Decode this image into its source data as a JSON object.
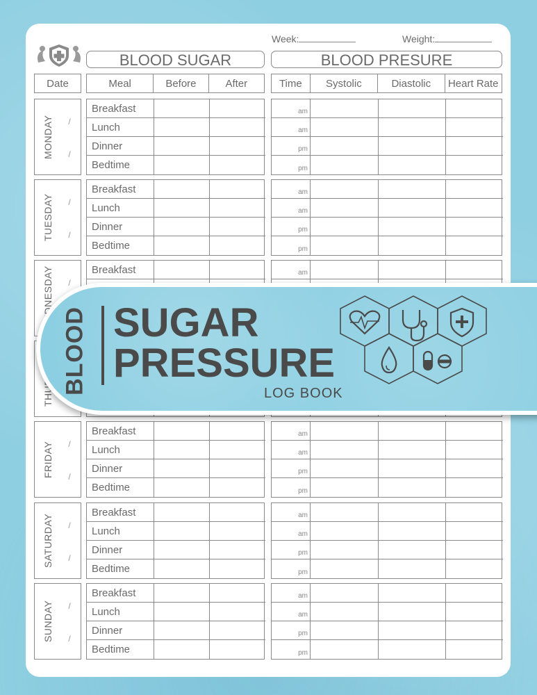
{
  "header": {
    "week_label": "Week:",
    "weight_label": "Weight:",
    "blood_sugar_title": "BLOOD SUGAR",
    "blood_pressure_title": "BLOOD PRESURE"
  },
  "columns": {
    "date": "Date",
    "meal": "Meal",
    "before": "Before",
    "after": "After",
    "time": "Time",
    "systolic": "Systolic",
    "diastolic": "Diastolic",
    "heart_rate": "Heart Rate"
  },
  "days": [
    "MONDAY",
    "TUESDAY",
    "WEDNESDAY",
    "THURSDAY",
    "FRIDAY",
    "SATURDAY",
    "SUNDAY"
  ],
  "meals": [
    "Breakfast",
    "Lunch",
    "Dinner",
    "Bedtime"
  ],
  "times": [
    "am",
    "am",
    "pm",
    "pm"
  ],
  "date_slash": "/",
  "banner": {
    "blood": "BLOOD",
    "sugar": "SUGAR",
    "pressure": "PRESSURE",
    "log_book": "LOG BOOK"
  },
  "icons": [
    "medical-shield-logo-icon",
    "heart-pulse-icon",
    "stethoscope-icon",
    "medical-shield-icon",
    "blood-drop-icon",
    "pills-icon"
  ],
  "colors": {
    "background": "#8fcfe2",
    "ink": "#4a4a4a",
    "grid": "#8a8a8a"
  }
}
